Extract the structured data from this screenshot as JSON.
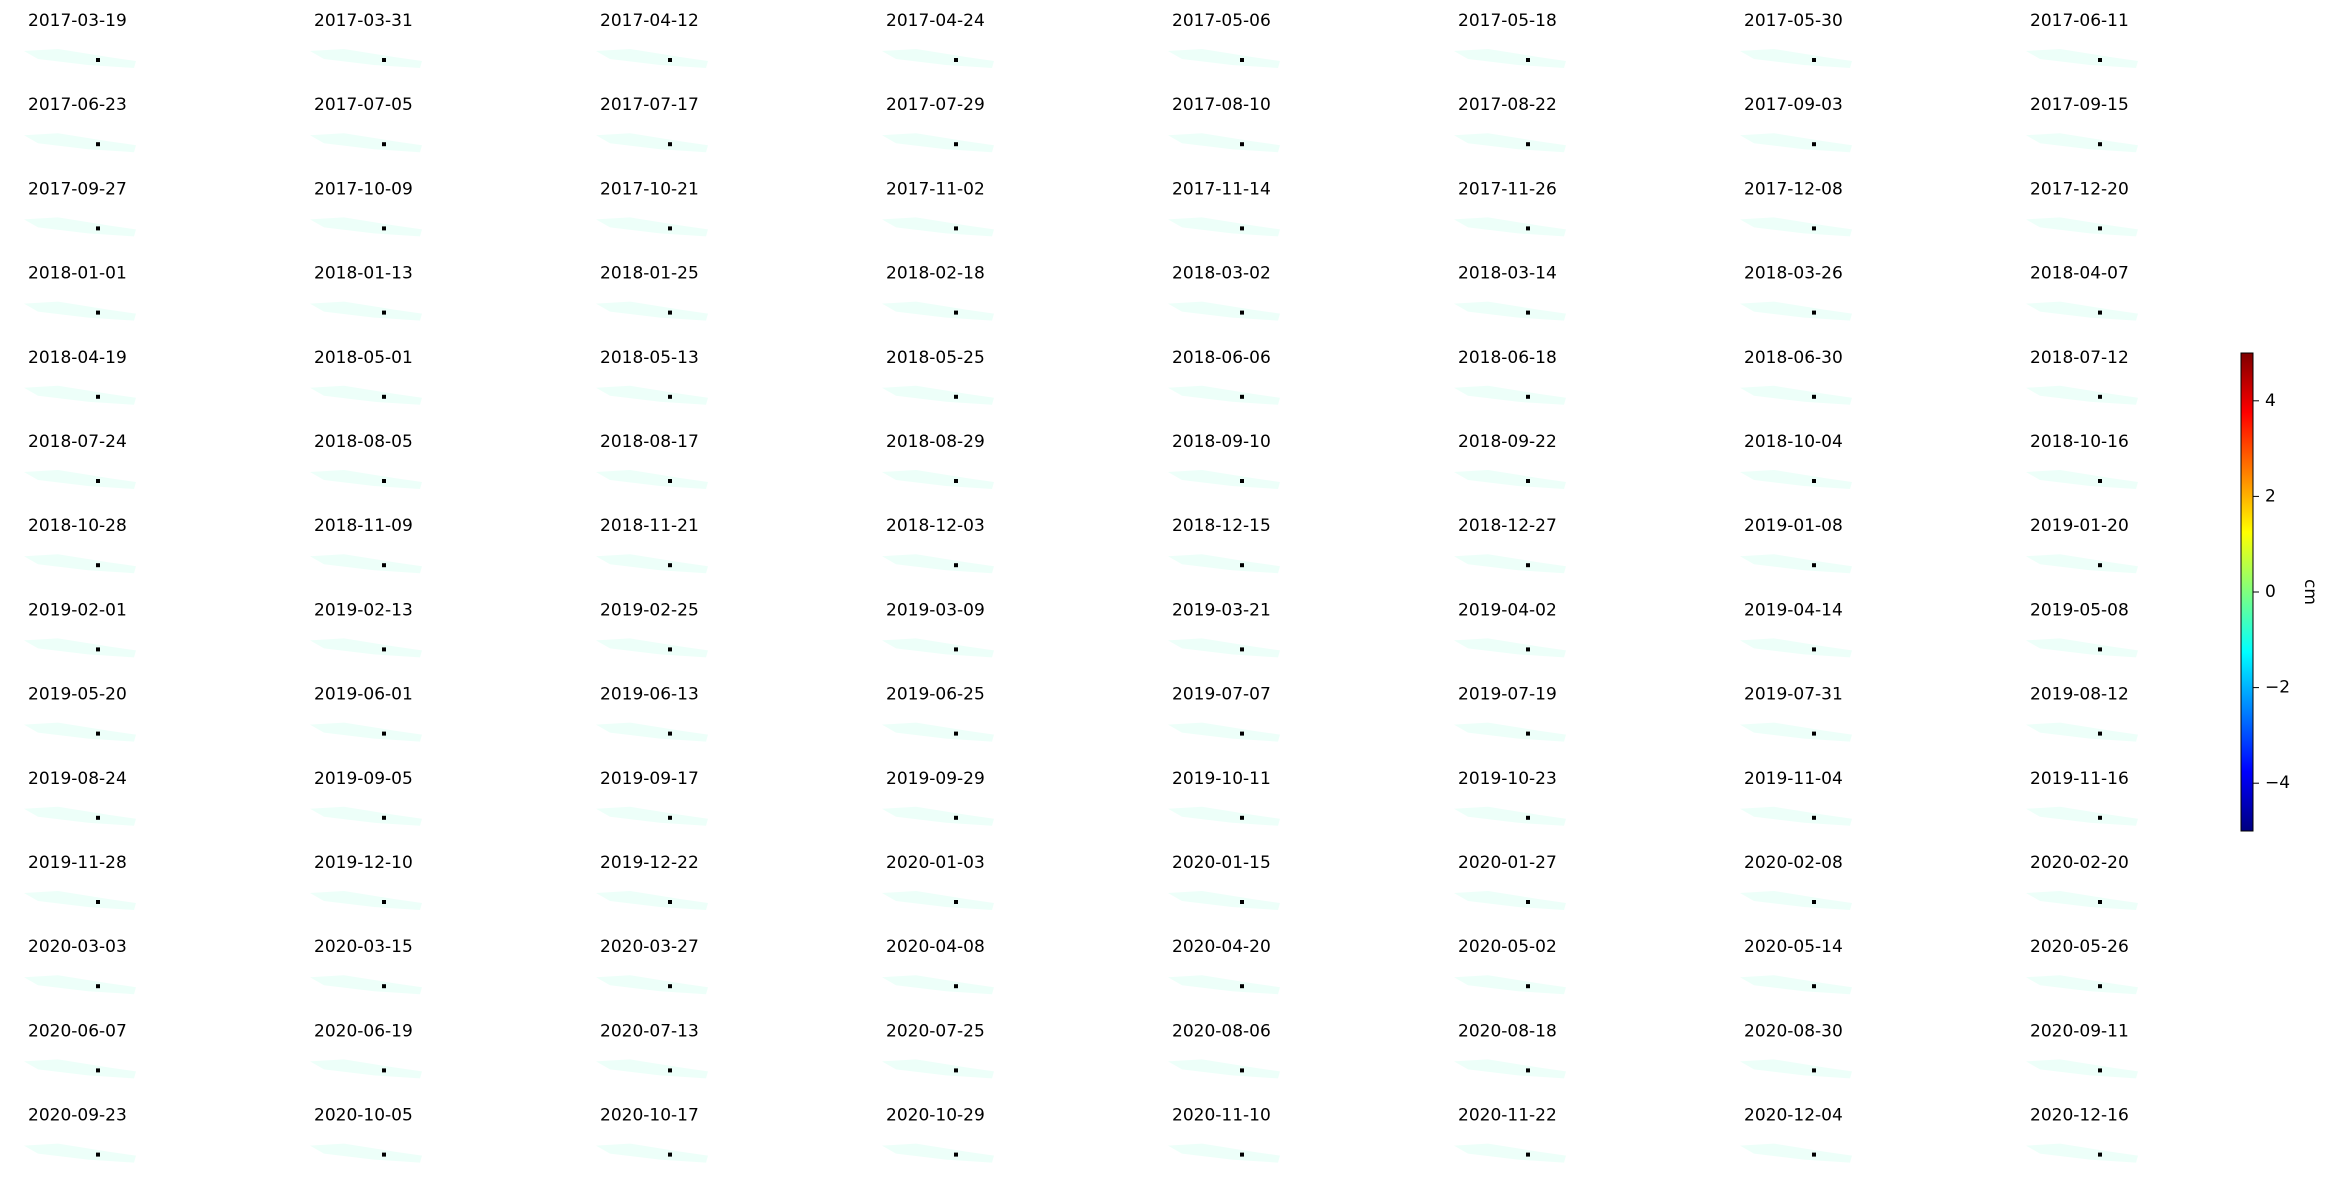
{
  "chart_data": {
    "type": "small-multiples",
    "titles": [
      "2017-03-19",
      "2017-03-31",
      "2017-04-12",
      "2017-04-24",
      "2017-05-06",
      "2017-05-18",
      "2017-05-30",
      "2017-06-11",
      "2017-06-23",
      "2017-07-05",
      "2017-07-17",
      "2017-07-29",
      "2017-08-10",
      "2017-08-22",
      "2017-09-03",
      "2017-09-15",
      "2017-09-27",
      "2017-10-09",
      "2017-10-21",
      "2017-11-02",
      "2017-11-14",
      "2017-11-26",
      "2017-12-08",
      "2017-12-20",
      "2018-01-01",
      "2018-01-13",
      "2018-01-25",
      "2018-02-18",
      "2018-03-02",
      "2018-03-14",
      "2018-03-26",
      "2018-04-07",
      "2018-04-19",
      "2018-05-01",
      "2018-05-13",
      "2018-05-25",
      "2018-06-06",
      "2018-06-18",
      "2018-06-30",
      "2018-07-12",
      "2018-07-24",
      "2018-08-05",
      "2018-08-17",
      "2018-08-29",
      "2018-09-10",
      "2018-09-22",
      "2018-10-04",
      "2018-10-16",
      "2018-10-28",
      "2018-11-09",
      "2018-11-21",
      "2018-12-03",
      "2018-12-15",
      "2018-12-27",
      "2019-01-08",
      "2019-01-20",
      "2019-02-01",
      "2019-02-13",
      "2019-02-25",
      "2019-03-09",
      "2019-03-21",
      "2019-04-02",
      "2019-04-14",
      "2019-05-08",
      "2019-05-20",
      "2019-06-01",
      "2019-06-13",
      "2019-06-25",
      "2019-07-07",
      "2019-07-19",
      "2019-07-31",
      "2019-08-12",
      "2019-08-24",
      "2019-09-05",
      "2019-09-17",
      "2019-09-29",
      "2019-10-11",
      "2019-10-23",
      "2019-11-04",
      "2019-11-16",
      "2019-11-28",
      "2019-12-10",
      "2019-12-22",
      "2020-01-03",
      "2020-01-15",
      "2020-01-27",
      "2020-02-08",
      "2020-02-20",
      "2020-03-03",
      "2020-03-15",
      "2020-03-27",
      "2020-04-08",
      "2020-04-20",
      "2020-05-02",
      "2020-05-14",
      "2020-05-26",
      "2020-06-07",
      "2020-06-19",
      "2020-07-13",
      "2020-07-25",
      "2020-08-06",
      "2020-08-18",
      "2020-08-30",
      "2020-09-11",
      "2020-09-23",
      "2020-10-05",
      "2020-10-17",
      "2020-10-29",
      "2020-11-10",
      "2020-11-22",
      "2020-12-04",
      "2020-12-16"
    ],
    "colorbar": {
      "label": "cm",
      "colormap": "jet",
      "ylim": [
        -5,
        5
      ],
      "yticks": [
        {
          "value": -4,
          "label": "−4"
        },
        {
          "value": -2,
          "label": "−2"
        },
        0,
        2,
        4
      ]
    }
  }
}
